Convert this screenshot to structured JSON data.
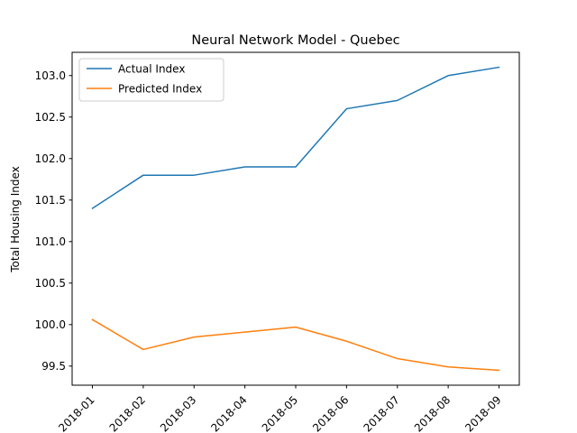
{
  "chart_data": {
    "type": "line",
    "title": "Neural Network Model - Quebec",
    "xlabel": "",
    "ylabel": "Total Housing Index",
    "categories": [
      "2018-01",
      "2018-02",
      "2018-03",
      "2018-04",
      "2018-05",
      "2018-06",
      "2018-07",
      "2018-08",
      "2018-09"
    ],
    "series": [
      {
        "name": "Actual Index",
        "color": "#1f77b4",
        "values": [
          101.4,
          101.8,
          101.8,
          101.9,
          101.9,
          102.6,
          102.7,
          103.0,
          103.1
        ]
      },
      {
        "name": "Predicted Index",
        "color": "#ff7f0e",
        "values": [
          100.06,
          99.7,
          99.85,
          99.91,
          99.97,
          99.8,
          99.59,
          99.49,
          99.45
        ]
      }
    ],
    "ylim": [
      99.27,
      103.28
    ],
    "yticks": [
      "99.5",
      "100.0",
      "100.5",
      "101.0",
      "101.5",
      "102.0",
      "102.5",
      "103.0"
    ],
    "legend_position": "top-left",
    "grid": false
  }
}
